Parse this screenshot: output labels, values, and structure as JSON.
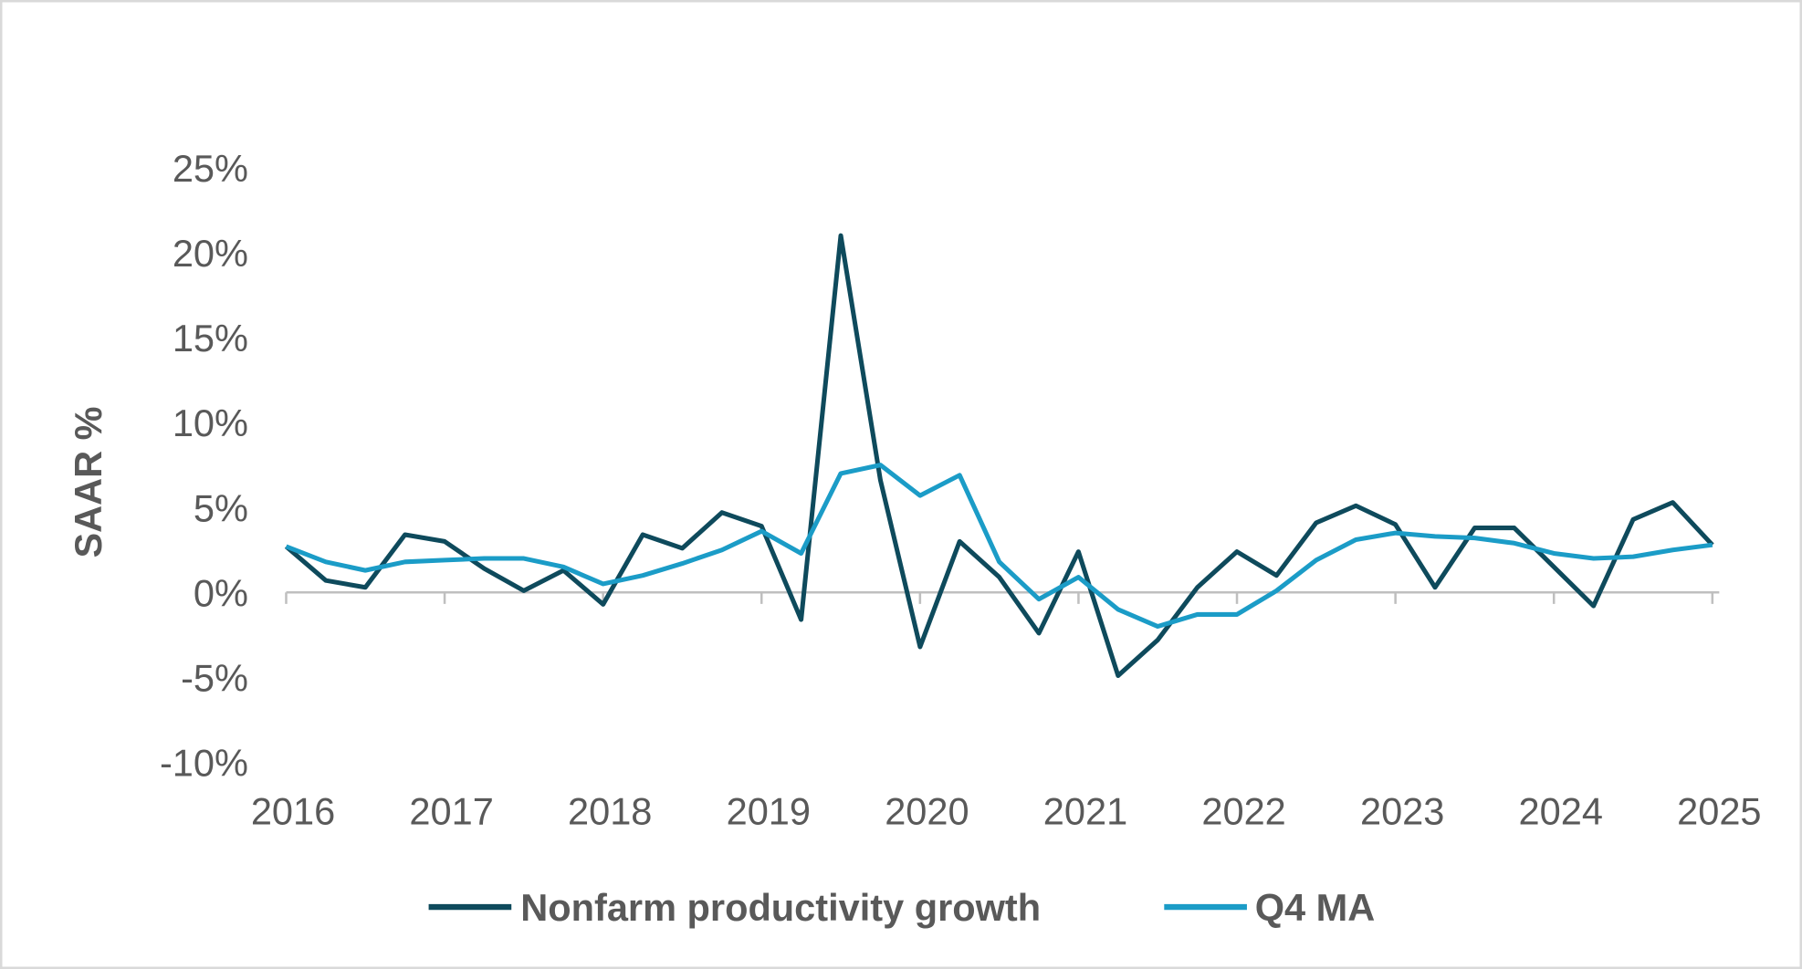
{
  "chart_data": {
    "type": "line",
    "title": "",
    "xlabel": "",
    "ylabel": "SAAR %",
    "ylim": [
      -10,
      25
    ],
    "xlim": [
      2016,
      2025
    ],
    "y_ticks": [
      "-10%",
      "-5%",
      "0%",
      "5%",
      "10%",
      "15%",
      "20%",
      "25%"
    ],
    "y_tick_values": [
      -10,
      -5,
      0,
      5,
      10,
      15,
      20,
      25
    ],
    "x_ticks": [
      "2016",
      "2017",
      "2018",
      "2019",
      "2020",
      "2021",
      "2022",
      "2023",
      "2024",
      "2025"
    ],
    "grid": false,
    "legend": "bottom",
    "x": [
      2016.0,
      2016.25,
      2016.5,
      2016.75,
      2017.0,
      2017.25,
      2017.5,
      2017.75,
      2018.0,
      2018.25,
      2018.5,
      2018.75,
      2019.0,
      2019.25,
      2019.5,
      2019.75,
      2020.0,
      2020.25,
      2020.5,
      2020.75,
      2021.0,
      2021.25,
      2021.5,
      2021.75,
      2022.0,
      2022.25,
      2022.5,
      2022.75,
      2023.0,
      2023.25,
      2023.5,
      2023.75,
      2024.0,
      2024.25,
      2024.5,
      2024.75,
      2025.0
    ],
    "series": [
      {
        "name": "Nonfarm productivity growth",
        "color": "#0e4a5c",
        "values": [
          2.7,
          0.7,
          0.3,
          3.4,
          3.0,
          1.4,
          0.1,
          1.3,
          -0.7,
          3.4,
          2.6,
          4.7,
          3.9,
          -1.6,
          21.0,
          6.6,
          -3.2,
          3.0,
          0.9,
          -2.4,
          2.4,
          -4.9,
          -2.8,
          0.3,
          2.4,
          1.0,
          4.1,
          5.1,
          4.0,
          0.3,
          3.8,
          3.8,
          1.5,
          -0.8,
          4.3,
          5.3,
          2.8
        ]
      },
      {
        "name": "Q4 MA",
        "color": "#1b9cc7",
        "values": [
          2.7,
          1.8,
          1.3,
          1.8,
          1.9,
          2.0,
          2.0,
          1.5,
          0.5,
          1.0,
          1.7,
          2.5,
          3.6,
          2.3,
          7.0,
          7.5,
          5.7,
          6.9,
          1.8,
          -0.4,
          0.9,
          -1.0,
          -2.0,
          -1.3,
          -1.3,
          0.1,
          1.9,
          3.1,
          3.5,
          3.3,
          3.2,
          2.9,
          2.3,
          2.0,
          2.1,
          2.5,
          2.8
        ]
      }
    ]
  }
}
